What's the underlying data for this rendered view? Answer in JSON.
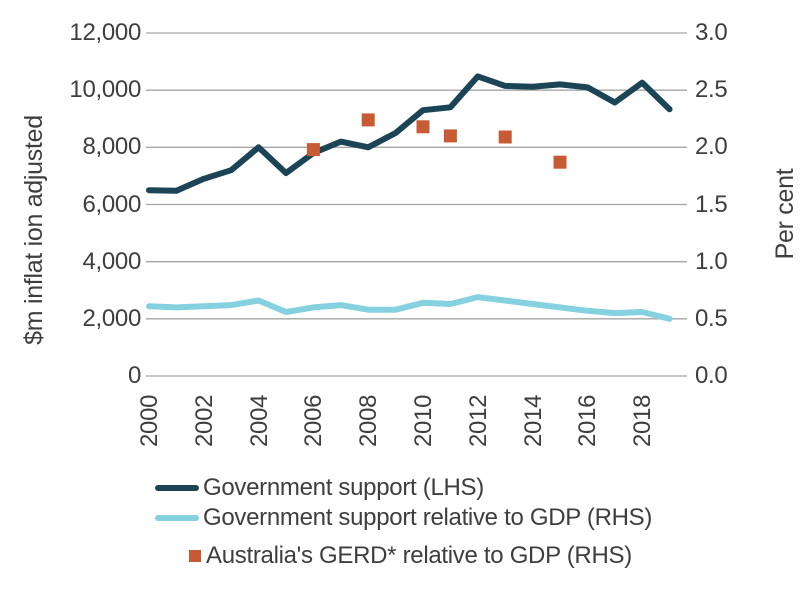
{
  "colors": {
    "navy": "#1b4557",
    "light_blue": "#85d1e0",
    "orange": "#c75c34",
    "gridline": "#a6a6a6",
    "text": "#3e3e3e",
    "background": "#ffffff"
  },
  "chart_data": {
    "type": "line",
    "grid": "horizontal",
    "x": [
      2000,
      2001,
      2002,
      2003,
      2004,
      2005,
      2006,
      2007,
      2008,
      2009,
      2010,
      2011,
      2012,
      2013,
      2014,
      2015,
      2016,
      2017,
      2018,
      2019
    ],
    "series": [
      {
        "name": "Government support (LHS)",
        "style": "line",
        "axis": "left",
        "color": "navy",
        "values": [
          6500,
          6480,
          6900,
          7200,
          8000,
          7100,
          7800,
          8200,
          8000,
          8500,
          9300,
          9400,
          10480,
          10150,
          10120,
          10200,
          10100,
          9570,
          10260,
          9330
        ]
      },
      {
        "name": "Government support relative to GDP (RHS)",
        "style": "line",
        "axis": "right",
        "color": "light_blue",
        "values": [
          0.61,
          0.6,
          0.61,
          0.62,
          0.66,
          0.56,
          0.6,
          0.62,
          0.58,
          0.58,
          0.64,
          0.63,
          0.69,
          0.66,
          0.63,
          0.6,
          0.57,
          0.55,
          0.56,
          0.5
        ]
      },
      {
        "name": "Australia's GERD* relative to GDP (RHS)",
        "style": "scatter",
        "axis": "right",
        "color": "orange",
        "points": [
          {
            "x": 2006,
            "y": 1.98
          },
          {
            "x": 2008,
            "y": 2.24
          },
          {
            "x": 2010,
            "y": 2.18
          },
          {
            "x": 2011,
            "y": 2.1
          },
          {
            "x": 2013,
            "y": 2.09
          },
          {
            "x": 2015,
            "y": 1.87
          }
        ]
      }
    ],
    "left_axis": {
      "title": "$m inflat ion adjusted",
      "min": 0,
      "max": 12000,
      "tick_values": [
        12000,
        10000,
        8000,
        6000,
        4000,
        2000,
        0
      ],
      "tick_labels": [
        "12,000",
        "10,000",
        "8,000",
        "6,000",
        "4,000",
        "2,000",
        "0"
      ]
    },
    "right_axis": {
      "title": "Per cent",
      "min": 0,
      "max": 3,
      "tick_values": [
        3.0,
        2.5,
        2.0,
        1.5,
        1.0,
        0.5,
        0.0
      ],
      "tick_labels": [
        "3.0",
        "2.5",
        "2.0",
        "1.5",
        "1.0",
        "0.5",
        "0.0"
      ]
    },
    "x_axis": {
      "tick_years": [
        2000,
        2002,
        2004,
        2006,
        2008,
        2010,
        2012,
        2014,
        2016,
        2018
      ],
      "tick_labels": [
        "2000",
        "2002",
        "2004",
        "2006",
        "2008",
        "2010",
        "2012",
        "2014",
        "2016",
        "2018"
      ]
    },
    "legend": {
      "position": "bottom",
      "entries": [
        {
          "label": "Government support (LHS)",
          "marker": "line",
          "color": "navy"
        },
        {
          "label": "Government support relative to GDP (RHS)",
          "marker": "line",
          "color": "light_blue"
        },
        {
          "label": "Australia's GERD* relative to GDP (RHS)",
          "marker": "square",
          "color": "orange"
        }
      ]
    }
  }
}
